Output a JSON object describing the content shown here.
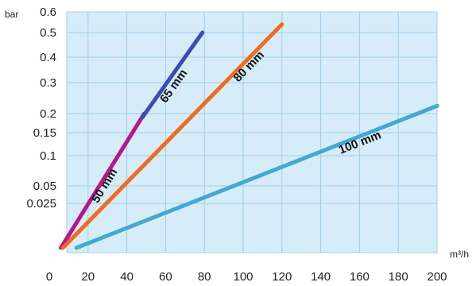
{
  "chart_data": {
    "type": "line",
    "title": "",
    "xlabel": "m³/h",
    "ylabel": "bar",
    "xlim": [
      0,
      200
    ],
    "x_ticks": [
      0,
      20,
      40,
      60,
      80,
      100,
      120,
      140,
      160,
      180,
      200
    ],
    "x_tick_labels": [
      "0",
      "20",
      "40",
      "60",
      "80",
      "100",
      "120",
      "140",
      "160",
      "180",
      "200"
    ],
    "y_ticks": [
      0.025,
      0.05,
      0.1,
      0.15,
      0.2,
      0.3,
      0.4,
      0.5,
      0.6
    ],
    "y_tick_labels": [
      "0.025",
      "0.05",
      "0.1",
      "0.15",
      "0.2",
      "0.3",
      "0.4",
      "0.5",
      "0.6"
    ],
    "grid": true,
    "background_color": "#d6ecf8",
    "grid_color": "#9cd0ec",
    "series": [
      {
        "name": "50 mm",
        "color": "#b5178c",
        "points": [
          [
            6,
            0.004
          ],
          [
            49,
            0.2
          ]
        ]
      },
      {
        "name": "65 mm",
        "color": "#3c4cb4",
        "points": [
          [
            48,
            0.19
          ],
          [
            79,
            0.5
          ]
        ]
      },
      {
        "name": "80 mm",
        "color": "#f06b1e",
        "points": [
          [
            7,
            0.004
          ],
          [
            120,
            0.54
          ]
        ]
      },
      {
        "name": "100 mm",
        "color": "#42a9cf",
        "points": [
          [
            14,
            0.004
          ],
          [
            200,
            0.225
          ]
        ]
      }
    ]
  }
}
